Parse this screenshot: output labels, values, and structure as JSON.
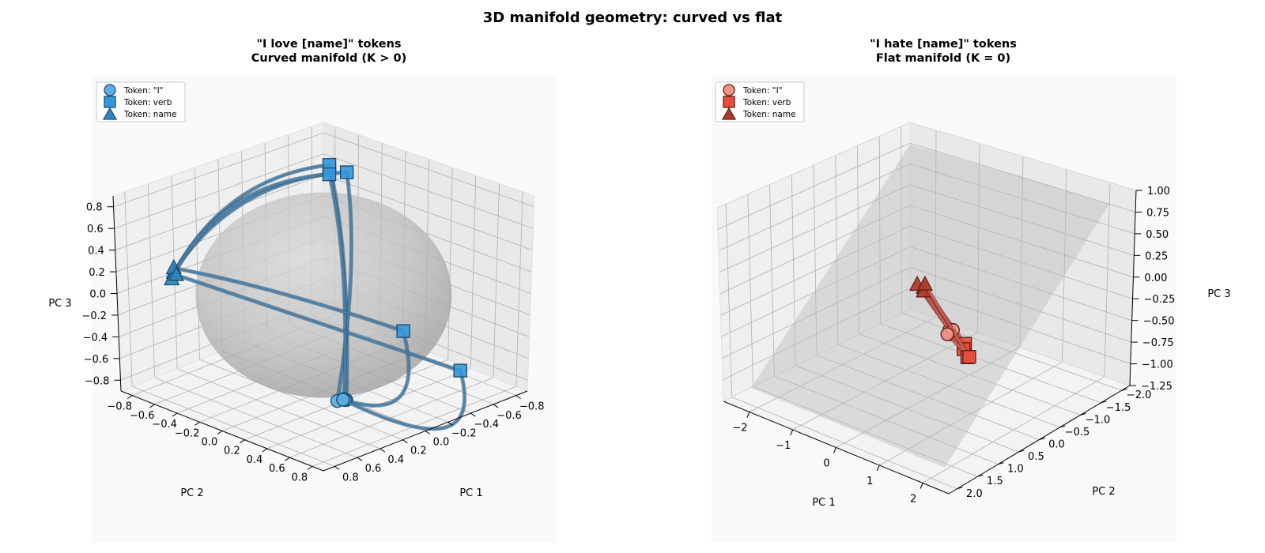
{
  "suptitle": "3D manifold geometry: curved vs flat",
  "colors": {
    "love_circle": "#5dade2",
    "love_square": "#3498db",
    "love_triangle": "#2e86c1",
    "love_line": "#4f7fa6",
    "love_edge": "#1b4f72",
    "hate_circle": "#f1948a",
    "hate_square": "#e74c3c",
    "hate_triangle": "#b03a2e",
    "hate_line": "#cd6155",
    "hate_edge": "#641e16"
  },
  "chart_data": [
    {
      "type": "scatter3d",
      "title_line1": "\"I love [name]\" tokens",
      "title_line2": "Curved manifold (K > 0)",
      "surface": "sphere",
      "xlabel": "PC 1",
      "ylabel": "PC 2",
      "zlabel": "PC 3",
      "xlim": [
        -0.9,
        0.9
      ],
      "ylim": [
        -0.9,
        0.9
      ],
      "zlim": [
        -0.9,
        0.9
      ],
      "x_ticks": [
        "-0.8",
        "-0.6",
        "-0.4",
        "-0.2",
        "0.0",
        "0.2",
        "0.4",
        "0.6",
        "0.8"
      ],
      "x_tick_values": [
        -0.8,
        -0.6,
        -0.4,
        -0.2,
        0.0,
        0.2,
        0.4,
        0.6,
        0.8
      ],
      "y_ticks": [
        "-0.8",
        "-0.6",
        "-0.4",
        "-0.2",
        "0.0",
        "0.2",
        "0.4",
        "0.6",
        "0.8"
      ],
      "y_tick_values": [
        -0.8,
        -0.6,
        -0.4,
        -0.2,
        0.0,
        0.2,
        0.4,
        0.6,
        0.8
      ],
      "z_ticks": [
        "-0.8",
        "-0.6",
        "-0.4",
        "-0.2",
        "0.0",
        "0.2",
        "0.4",
        "0.6",
        "0.8"
      ],
      "z_tick_values": [
        -0.8,
        -0.6,
        -0.4,
        -0.2,
        0.0,
        0.2,
        0.4,
        0.6,
        0.8
      ],
      "legend": {
        "position": "upper-left",
        "entries": [
          "Token: \"I\"",
          "Token: verb",
          "Token: name"
        ]
      },
      "series": [
        {
          "i": [
            0.45,
            0.25,
            -0.7
          ],
          "verb": [
            -0.55,
            -0.6,
            0.75
          ],
          "name": [
            -0.7,
            0.6,
            0.15
          ]
        },
        {
          "i": [
            0.42,
            0.3,
            -0.7
          ],
          "verb": [
            -0.45,
            -0.65,
            0.7
          ],
          "name": [
            -0.75,
            0.55,
            0.12
          ]
        },
        {
          "i": [
            0.4,
            0.22,
            -0.72
          ],
          "verb": [
            -0.5,
            -0.55,
            0.7
          ],
          "name": [
            -0.7,
            0.62,
            0.1
          ]
        },
        {
          "i": [
            0.47,
            0.28,
            -0.68
          ],
          "verb": [
            0.1,
            -0.6,
            -0.55
          ],
          "name": [
            -0.72,
            0.58,
            0.18
          ]
        },
        {
          "i": [
            0.43,
            0.26,
            -0.7
          ],
          "verb": [
            0.8,
            -0.4,
            -0.55
          ],
          "name": [
            -0.68,
            0.6,
            0.14
          ]
        }
      ]
    },
    {
      "type": "scatter3d",
      "title_line1": "\"I hate [name]\" tokens",
      "title_line2": "Flat manifold (K = 0)",
      "surface": "plane",
      "xlabel": "PC 1",
      "ylabel": "PC 2",
      "zlabel": "PC 3",
      "xlim": [
        -2.6,
        2.6
      ],
      "ylim": [
        -2.2,
        2.2
      ],
      "zlim": [
        -1.25,
        1.0
      ],
      "x_ticks": [
        "-2",
        "-1",
        "0",
        "1",
        "2"
      ],
      "x_tick_values": [
        -2,
        -1,
        0,
        1,
        2
      ],
      "y_ticks": [
        "-2.0",
        "-1.5",
        "-1.0",
        "-0.5",
        "0.0",
        "0.5",
        "1.0",
        "1.5",
        "2.0"
      ],
      "y_tick_values": [
        -2.0,
        -1.5,
        -1.0,
        -0.5,
        0.0,
        0.5,
        1.0,
        1.5,
        2.0
      ],
      "z_ticks": [
        "-1.25",
        "-1.00",
        "-0.75",
        "-0.50",
        "-0.25",
        "0.00",
        "0.25",
        "0.50",
        "0.75",
        "1.00"
      ],
      "z_tick_values": [
        -1.25,
        -1.0,
        -0.75,
        -0.5,
        -0.25,
        0.0,
        0.25,
        0.5,
        0.75,
        1.0
      ],
      "legend": {
        "position": "upper-left",
        "entries": [
          "Token: \"I\"",
          "Token: verb",
          "Token: name"
        ]
      },
      "series": [
        {
          "i": [
            1.55,
            1.1,
            0.05
          ],
          "verb": [
            0.95,
            0.1,
            -0.45
          ],
          "name": [
            -0.3,
            -0.2,
            -0.1
          ]
        },
        {
          "i": [
            1.6,
            1.15,
            0.02
          ],
          "verb": [
            1.3,
            0.5,
            -0.35
          ],
          "name": [
            -0.35,
            -0.1,
            -0.05
          ]
        },
        {
          "i": [
            1.58,
            1.05,
            0.04
          ],
          "verb": [
            1.1,
            0.2,
            -0.55
          ],
          "name": [
            -0.25,
            -0.15,
            -0.12
          ]
        },
        {
          "i": [
            1.52,
            1.12,
            0.0
          ],
          "verb": [
            1.0,
            0.05,
            -0.6
          ],
          "name": [
            -0.32,
            -0.25,
            -0.08
          ]
        }
      ]
    }
  ]
}
